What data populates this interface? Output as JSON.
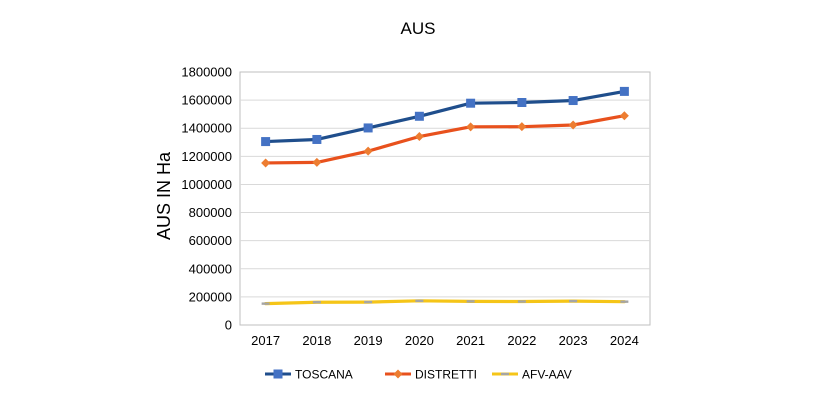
{
  "chart_data": {
    "type": "line",
    "title": "AUS",
    "xlabel": "",
    "ylabel": "AUS IN Ha",
    "categories": [
      "2017",
      "2018",
      "2019",
      "2020",
      "2021",
      "2022",
      "2023",
      "2024"
    ],
    "ylim": [
      0,
      1800000
    ],
    "yticks": [
      0,
      200000,
      400000,
      600000,
      800000,
      1000000,
      1200000,
      1400000,
      1600000,
      1800000
    ],
    "grid": true,
    "legend_position": "bottom",
    "series": [
      {
        "name": "TOSCANA",
        "values": [
          1305000,
          1320000,
          1402000,
          1485000,
          1578000,
          1583000,
          1597000,
          1662000
        ],
        "color": "#1f4e8c",
        "marker": "square",
        "marker_color": "#4472c4"
      },
      {
        "name": "DISTRETTI",
        "values": [
          1153000,
          1157000,
          1237000,
          1341000,
          1410000,
          1411000,
          1423000,
          1489000
        ],
        "color": "#e8511d",
        "marker": "diamond",
        "marker_color": "#ed7d31"
      },
      {
        "name": "AFV-AAV",
        "values": [
          152000,
          162000,
          163000,
          172000,
          168000,
          167000,
          170000,
          166000
        ],
        "color": "#f5c518",
        "marker": "dash",
        "marker_color": "#a5a5a5"
      }
    ]
  }
}
